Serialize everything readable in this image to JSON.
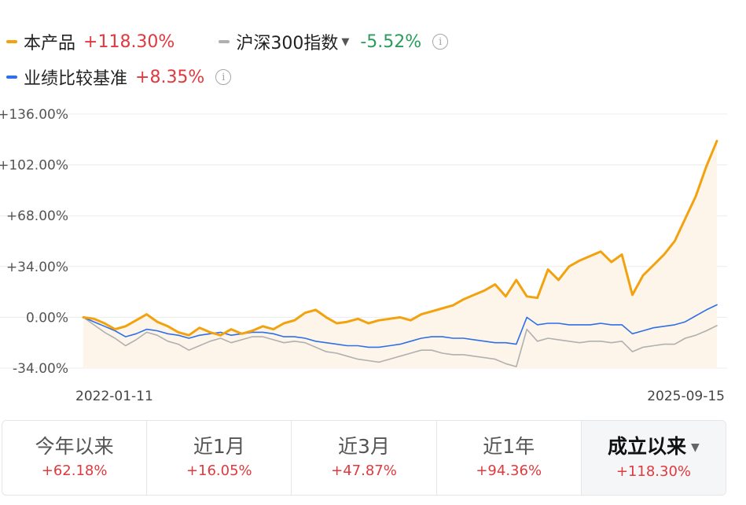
{
  "legend": {
    "product": {
      "name": "本产品",
      "value": "+118.30%",
      "color": "#f3a20f",
      "value_color": "#e0393e"
    },
    "index": {
      "name": "沪深300指数",
      "value": "-5.52%",
      "color": "#b0b0b0",
      "value_color": "#2a9d5c",
      "caret": "▼",
      "info_icon": "info-circle-icon",
      "info_glyph": "i"
    },
    "benchmark": {
      "name": "业绩比较基准",
      "value": "+8.35%",
      "color": "#2f6fe8",
      "value_color": "#e0393e",
      "info_icon": "info-circle-icon",
      "info_glyph": "i"
    }
  },
  "chart_data": {
    "type": "line",
    "x_start": "2022-01-11",
    "x_end": "2025-09-15",
    "x_tick_labels": [
      "2022-01-11",
      "2025-09-15"
    ],
    "y_tick_labels": [
      "+136.00%",
      "+102.00%",
      "+68.00%",
      "+34.00%",
      "0.00%",
      "-34.00%"
    ],
    "y_ticks": [
      136,
      102,
      68,
      34,
      0,
      -34
    ],
    "ylim": [
      -34,
      136
    ],
    "grid": true,
    "n_points": 61,
    "series": [
      {
        "name": "本产品",
        "color": "#f3a20f",
        "fill": "#fdf5ea",
        "values": [
          0,
          -1,
          -4,
          -8,
          -6,
          -2,
          2,
          -3,
          -6,
          -10,
          -12,
          -7,
          -10,
          -12,
          -8,
          -11,
          -9,
          -6,
          -8,
          -4,
          -2,
          3,
          5,
          0,
          -4,
          -3,
          -1,
          -4,
          -2,
          -1,
          0,
          -2,
          2,
          4,
          6,
          8,
          12,
          15,
          18,
          22,
          14,
          25,
          14,
          13,
          32,
          25,
          34,
          38,
          41,
          44,
          37,
          42,
          15,
          28,
          35,
          42,
          51,
          66,
          81,
          101,
          118
        ]
      },
      {
        "name": "沪深300指数",
        "color": "#b0b0b0",
        "fill": "none",
        "values": [
          0,
          -5,
          -10,
          -14,
          -19,
          -15,
          -10,
          -12,
          -16,
          -18,
          -22,
          -19,
          -16,
          -14,
          -17,
          -15,
          -13,
          -13,
          -15,
          -17,
          -16,
          -17,
          -20,
          -23,
          -24,
          -26,
          -28,
          -29,
          -30,
          -28,
          -26,
          -24,
          -22,
          -22,
          -24,
          -25,
          -25,
          -26,
          -27,
          -28,
          -31,
          -33,
          -8,
          -16,
          -14,
          -15,
          -16,
          -17,
          -16,
          -16,
          -17,
          -16,
          -23,
          -20,
          -19,
          -18,
          -18,
          -14,
          -12,
          -9,
          -5.52
        ]
      },
      {
        "name": "业绩比较基准",
        "color": "#2f6fe8",
        "fill": "none",
        "values": [
          0,
          -3,
          -6,
          -9,
          -13,
          -11,
          -8,
          -9,
          -11,
          -12,
          -14,
          -12,
          -11,
          -10,
          -12,
          -11,
          -10,
          -10,
          -11,
          -13,
          -13,
          -14,
          -16,
          -17,
          -18,
          -19,
          -19,
          -20,
          -20,
          -19,
          -18,
          -16,
          -14,
          -13,
          -13,
          -14,
          -14,
          -15,
          -16,
          -17,
          -17,
          -18,
          0,
          -5,
          -4,
          -4,
          -5,
          -5,
          -5,
          -4,
          -5,
          -5,
          -11,
          -9,
          -7,
          -6,
          -5,
          -3,
          1,
          5,
          8.35
        ]
      }
    ]
  },
  "tabs": [
    {
      "label": "今年以来",
      "value": "+62.18%"
    },
    {
      "label": "近1月",
      "value": "+16.05%"
    },
    {
      "label": "近3月",
      "value": "+47.87%"
    },
    {
      "label": "近1年",
      "value": "+94.36%"
    },
    {
      "label": "成立以来",
      "value": "+118.30%",
      "caret": "▼"
    }
  ],
  "active_tab_index": 4
}
